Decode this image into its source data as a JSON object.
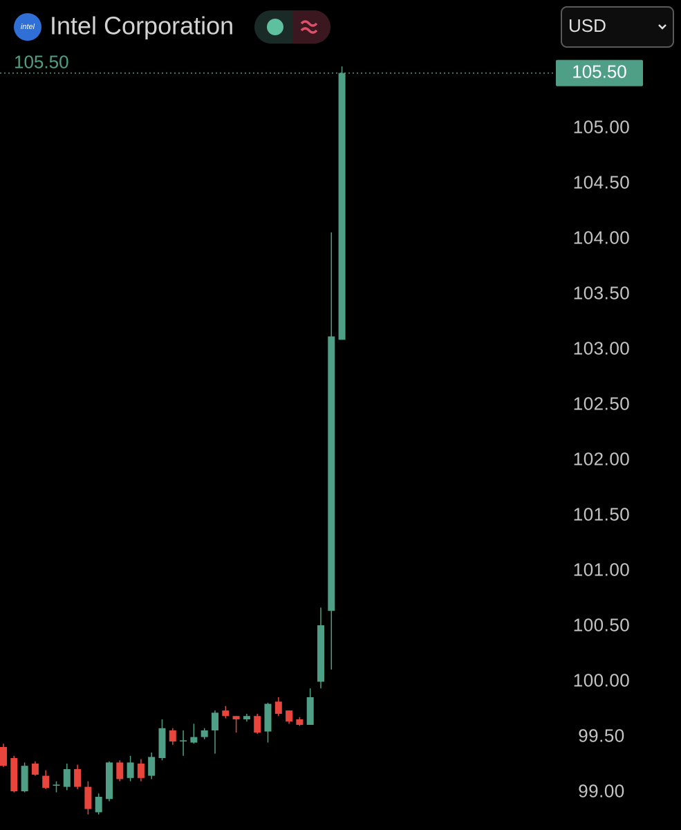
{
  "chart_data": {
    "type": "candlestick",
    "logo": "intel",
    "title": "Intel Corporation",
    "currency": "USD",
    "last_price": {
      "value": 105.5,
      "label": "105.50"
    },
    "up_color": "#4e9f86",
    "down_color": "#e8453c",
    "open": [
      99.41,
      99.31,
      99.01,
      99.26,
      99.15,
      99.06,
      99.05,
      99.21,
      99.05,
      98.82,
      98.94,
      99.27,
      99.13,
      99.26,
      99.15,
      99.31,
      99.56,
      99.46,
      99.45,
      99.5,
      99.56,
      99.74,
      99.69,
      99.66,
      99.69,
      99.55,
      99.82,
      99.74,
      99.66,
      99.61,
      100.0,
      100.64,
      103.09
    ],
    "high": [
      99.44,
      99.33,
      99.27,
      99.28,
      99.2,
      99.1,
      99.26,
      99.25,
      99.1,
      98.99,
      99.28,
      99.29,
      99.33,
      99.3,
      99.36,
      99.66,
      99.58,
      99.56,
      99.62,
      99.58,
      99.74,
      99.78,
      99.69,
      99.71,
      99.71,
      99.81,
      99.86,
      99.74,
      99.68,
      99.94,
      100.67,
      104.06,
      105.56
    ],
    "low": [
      99.23,
      99.0,
      99.0,
      99.15,
      99.03,
      99.0,
      99.02,
      99.03,
      98.8,
      98.8,
      98.92,
      99.1,
      99.1,
      99.1,
      99.12,
      99.29,
      99.43,
      99.33,
      99.44,
      99.48,
      99.35,
      99.67,
      99.54,
      99.64,
      99.53,
      99.45,
      99.69,
      99.62,
      99.6,
      99.61,
      99.94,
      100.11,
      103.09
    ],
    "close": [
      99.24,
      99.01,
      99.24,
      99.16,
      99.04,
      99.07,
      99.21,
      99.05,
      98.85,
      98.96,
      99.27,
      99.12,
      99.27,
      99.13,
      99.32,
      99.58,
      99.46,
      99.47,
      99.5,
      99.56,
      99.72,
      99.69,
      99.66,
      99.69,
      99.54,
      99.8,
      99.71,
      99.64,
      99.61,
      99.86,
      100.51,
      103.12,
      105.5
    ],
    "ylim": [
      98.66,
      105.66
    ],
    "yticks": [
      {
        "value": 99,
        "label": "99.00"
      },
      {
        "value": 99.5,
        "label": "99.50"
      },
      {
        "value": 100,
        "label": "100.00"
      },
      {
        "value": 100.5,
        "label": "100.50"
      },
      {
        "value": 101,
        "label": "101.00"
      },
      {
        "value": 101.5,
        "label": "101.50"
      },
      {
        "value": 102,
        "label": "102.00"
      },
      {
        "value": 102.5,
        "label": "102.50"
      },
      {
        "value": 103,
        "label": "103.00"
      },
      {
        "value": 103.5,
        "label": "103.50"
      },
      {
        "value": 104,
        "label": "104.00"
      },
      {
        "value": 104.5,
        "label": "104.50"
      },
      {
        "value": 105,
        "label": "105.00"
      }
    ]
  }
}
